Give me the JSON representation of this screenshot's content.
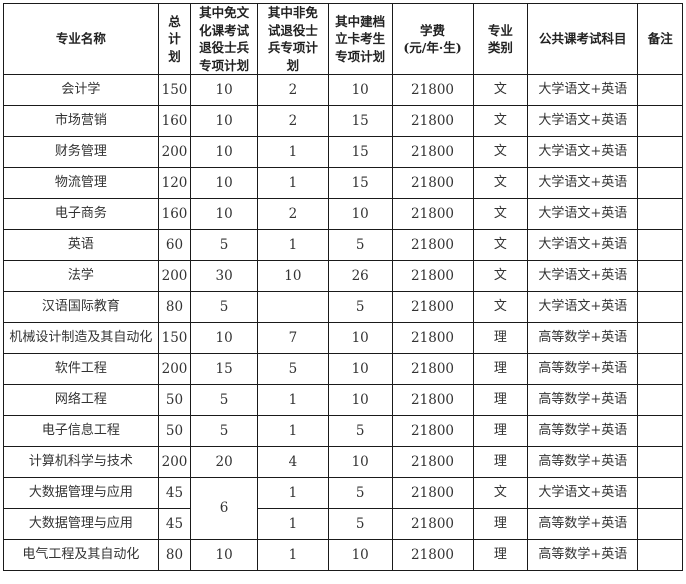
{
  "table": {
    "columns": [
      {
        "id": "major",
        "label_lines": [
          "专业名称"
        ]
      },
      {
        "id": "total",
        "label_lines": [
          "总",
          "计",
          "划"
        ]
      },
      {
        "id": "exempt",
        "label_lines": [
          "其中免文",
          "化课考试",
          "退役士兵",
          "专项计划"
        ]
      },
      {
        "id": "non_exempt",
        "label_lines": [
          "其中非免",
          "试退役士",
          "兵专项计",
          "划"
        ]
      },
      {
        "id": "archived",
        "label_lines": [
          "其中建档",
          "立卡考生",
          "专项计划"
        ]
      },
      {
        "id": "tuition",
        "label_lines": [
          "学费",
          "(元/年·生)"
        ]
      },
      {
        "id": "category",
        "label_lines": [
          "专业",
          "类别"
        ]
      },
      {
        "id": "subjects",
        "label_lines": [
          "公共课考试科目"
        ]
      },
      {
        "id": "remark",
        "label_lines": [
          "备注"
        ]
      }
    ],
    "rows": [
      {
        "major": "会计学",
        "total": "150",
        "exempt": "10",
        "non_exempt": "2",
        "archived": "10",
        "tuition": "21800",
        "category": "文",
        "subjects": "大学语文+英语",
        "remark": ""
      },
      {
        "major": "市场营销",
        "total": "160",
        "exempt": "10",
        "non_exempt": "2",
        "archived": "15",
        "tuition": "21800",
        "category": "文",
        "subjects": "大学语文+英语",
        "remark": ""
      },
      {
        "major": "财务管理",
        "total": "200",
        "exempt": "10",
        "non_exempt": "1",
        "archived": "15",
        "tuition": "21800",
        "category": "文",
        "subjects": "大学语文+英语",
        "remark": ""
      },
      {
        "major": "物流管理",
        "total": "120",
        "exempt": "10",
        "non_exempt": "1",
        "archived": "15",
        "tuition": "21800",
        "category": "文",
        "subjects": "大学语文+英语",
        "remark": ""
      },
      {
        "major": "电子商务",
        "total": "160",
        "exempt": "10",
        "non_exempt": "2",
        "archived": "10",
        "tuition": "21800",
        "category": "文",
        "subjects": "大学语文+英语",
        "remark": ""
      },
      {
        "major": "英语",
        "total": "60",
        "exempt": "5",
        "non_exempt": "1",
        "archived": "5",
        "tuition": "21800",
        "category": "文",
        "subjects": "大学语文+英语",
        "remark": ""
      },
      {
        "major": "法学",
        "total": "200",
        "exempt": "30",
        "non_exempt": "10",
        "archived": "26",
        "tuition": "21800",
        "category": "文",
        "subjects": "大学语文+英语",
        "remark": ""
      },
      {
        "major": "汉语国际教育",
        "total": "80",
        "exempt": "5",
        "non_exempt": "",
        "archived": "5",
        "tuition": "21800",
        "category": "文",
        "subjects": "大学语文+英语",
        "remark": ""
      },
      {
        "major": "机械设计制造及其自动化",
        "total": "150",
        "exempt": "10",
        "non_exempt": "7",
        "archived": "10",
        "tuition": "21800",
        "category": "理",
        "subjects": "高等数学+英语",
        "remark": ""
      },
      {
        "major": "软件工程",
        "total": "200",
        "exempt": "15",
        "non_exempt": "5",
        "archived": "10",
        "tuition": "21800",
        "category": "理",
        "subjects": "高等数学+英语",
        "remark": ""
      },
      {
        "major": "网络工程",
        "total": "50",
        "exempt": "5",
        "non_exempt": "1",
        "archived": "10",
        "tuition": "21800",
        "category": "理",
        "subjects": "高等数学+英语",
        "remark": ""
      },
      {
        "major": "电子信息工程",
        "total": "50",
        "exempt": "5",
        "non_exempt": "1",
        "archived": "5",
        "tuition": "21800",
        "category": "理",
        "subjects": "高等数学+英语",
        "remark": ""
      },
      {
        "major": "计算机科学与技术",
        "total": "200",
        "exempt": "20",
        "non_exempt": "4",
        "archived": "10",
        "tuition": "21800",
        "category": "理",
        "subjects": "高等数学+英语",
        "remark": ""
      },
      {
        "major": "大数据管理与应用",
        "total": "45",
        "exempt": {
          "value": "6",
          "rowspan": 2
        },
        "non_exempt": "1",
        "archived": "5",
        "tuition": "21800",
        "category": "文",
        "subjects": "大学语文+英语",
        "remark": ""
      },
      {
        "major": "大数据管理与应用",
        "total": "45",
        "exempt": null,
        "non_exempt": "1",
        "archived": "5",
        "tuition": "21800",
        "category": "理",
        "subjects": "高等数学+英语",
        "remark": ""
      },
      {
        "major": "电气工程及其自动化",
        "total": "80",
        "exempt": "10",
        "non_exempt": "1",
        "archived": "10",
        "tuition": "21800",
        "category": "理",
        "subjects": "高等数学+英语",
        "remark": ""
      }
    ]
  }
}
